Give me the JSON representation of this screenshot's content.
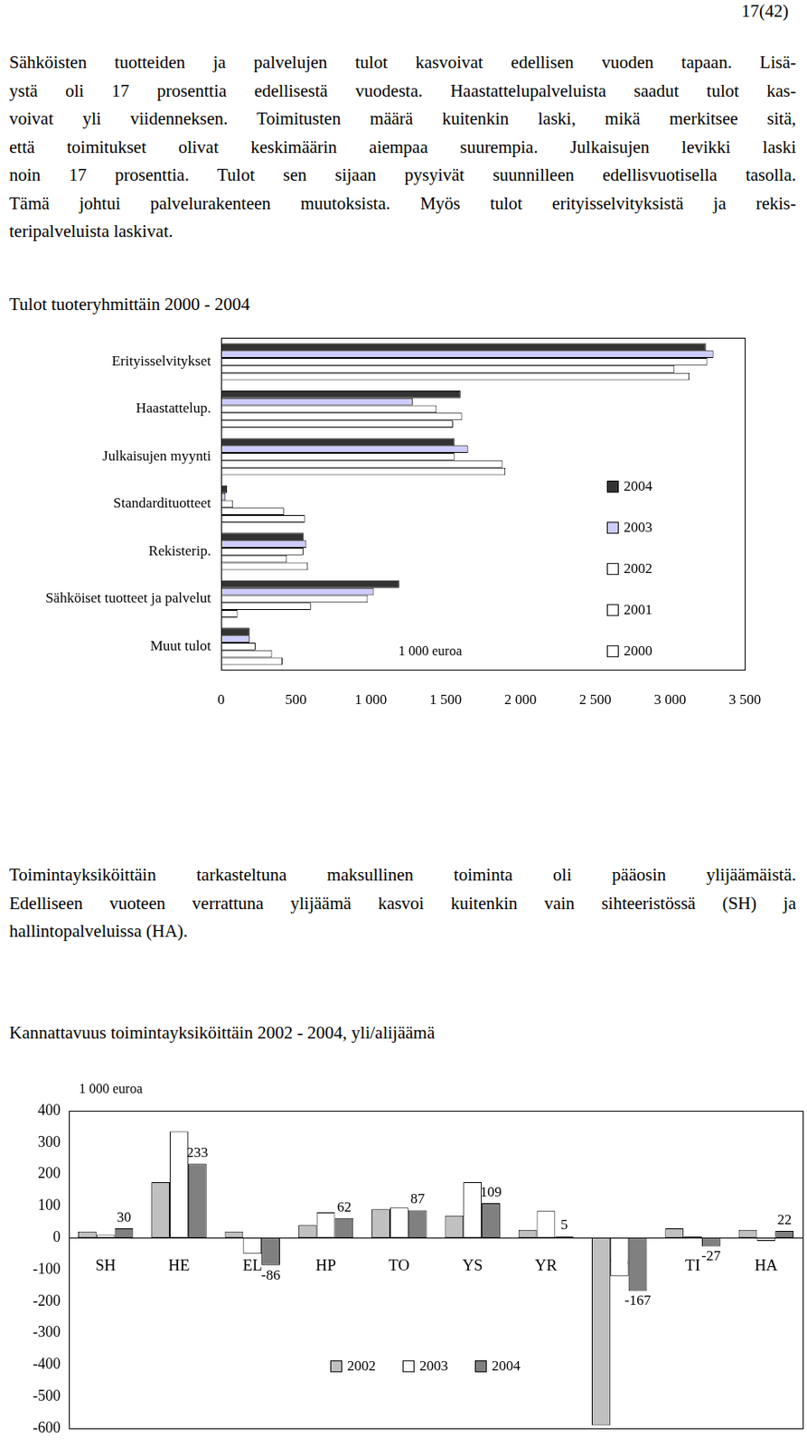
{
  "page_number": "17(42)",
  "paragraphs": [
    [
      "Sähköisten tuotteiden ja palvelujen tulot kasvoivat edellisen vuoden tapaan. Lisä-",
      "ystä oli 17 prosenttia edellisestä vuodesta. Haastattelupalveluista saadut tulot kas-",
      "voivat yli viidenneksen. Toimitusten määrä kuitenkin laski, mikä merkitsee sitä,",
      "että toimitukset olivat keskimäärin aiempaa suurempia. Julkaisujen levikki laski",
      "noin 17 prosenttia. Tulot sen sijaan pysyivät suunnilleen edellisvuotisella tasolla.",
      "Tämä johtui palvelurakenteen muutoksista. Myös tulot erityisselvityksistä ja rekis-",
      "teripalveluista laskivat."
    ],
    [
      "Toimintayksiköittäin tarkasteltuna maksullinen toiminta oli pääosin ylijäämäistä.",
      "Edelliseen vuoteen verrattuna ylijäämä kasvoi kuitenkin vain sihteeristössä (SH) ja",
      "hallintopalveluissa (HA)."
    ]
  ],
  "chart_data": [
    {
      "type": "bar",
      "title": "Tulot tuoteryhmittäin 2000 - 2004",
      "orientation": "horizontal",
      "categories": [
        "Erityisselvitykset",
        "Haastattelup.",
        "Julkaisujen myynti",
        "Standardituotteet",
        "Rekisterip.",
        "Sähköiset tuotteet ja palvelut",
        "Muut tulot"
      ],
      "series": [
        {
          "name": "2004",
          "color": "#333333",
          "values": [
            3240,
            1600,
            1560,
            40,
            550,
            1190,
            190
          ]
        },
        {
          "name": "2003",
          "color": "#ccccff",
          "values": [
            3290,
            1280,
            1650,
            30,
            570,
            1020,
            190
          ]
        },
        {
          "name": "2002",
          "color": "#ffffff",
          "values": [
            3250,
            1440,
            1560,
            80,
            550,
            980,
            230
          ]
        },
        {
          "name": "2001",
          "color": "#ffffff",
          "values": [
            3030,
            1610,
            1880,
            420,
            440,
            600,
            340
          ]
        },
        {
          "name": "2000",
          "color": "#ffffff",
          "values": [
            3130,
            1550,
            1900,
            560,
            580,
            110,
            410
          ]
        }
      ],
      "xlim": [
        0,
        3500
      ],
      "xticks": [
        0,
        500,
        {
          "value": 1000,
          "label": "1 000"
        },
        {
          "value": 1500,
          "label": "1 500"
        },
        {
          "value": 2000,
          "label": "2 000"
        },
        {
          "value": 2500,
          "label": "2 500"
        },
        {
          "value": 3000,
          "label": "3 000"
        },
        {
          "value": 3500,
          "label": "3 500"
        }
      ],
      "annotations": [
        "1 000 euroa"
      ],
      "legend": "right",
      "grid": false
    },
    {
      "type": "bar",
      "title": "Kannattavuus toimintayksiköittäin 2002 - 2004, yli/alijäämä",
      "categories": [
        "SH",
        "HE",
        "EL",
        "HP",
        "TO",
        "YS",
        "YR",
        "TP",
        "TI",
        "HA"
      ],
      "series": [
        {
          "name": "2002",
          "color": "#c0c0c0",
          "values": [
            20,
            175,
            20,
            40,
            90,
            70,
            25,
            -590,
            30,
            25
          ]
        },
        {
          "name": "2003",
          "color": "#ffffff",
          "values": [
            10,
            335,
            -50,
            80,
            95,
            175,
            85,
            -120,
            5,
            -10
          ]
        },
        {
          "name": "2004",
          "color": "#808080",
          "values": [
            30,
            233,
            -86,
            62,
            87,
            109,
            5,
            -167,
            -27,
            22
          ],
          "data_labels": true
        }
      ],
      "ylim": [
        -600,
        400
      ],
      "yticks": [
        -600,
        -500,
        -400,
        -300,
        -200,
        -100,
        0,
        100,
        200,
        300,
        400
      ],
      "annotations": [
        "1 000 euroa"
      ],
      "legend": "bottom",
      "grid": false
    }
  ]
}
